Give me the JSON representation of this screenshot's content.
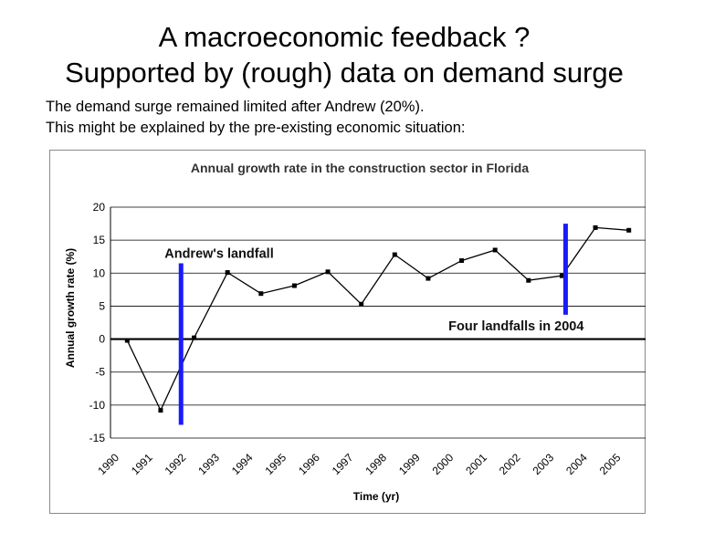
{
  "slide": {
    "title_line1": "A macroeconomic feedback ?",
    "title_line2": "Supported by (rough) data on demand surge",
    "text_line1": "The demand surge remained limited after Andrew (20%).",
    "text_line2": "This might be explained by the pre-existing economic situation:"
  },
  "chart_data": {
    "type": "line",
    "title": "Annual growth rate in the construction sector in Florida",
    "xlabel": "Time (yr)",
    "ylabel": "Annual growth rate (%)",
    "ylim": [
      -15,
      20
    ],
    "yticks": [
      20,
      15,
      10,
      5,
      0,
      -5,
      -10,
      -15
    ],
    "grid": true,
    "categories": [
      "1990",
      "1991",
      "1992",
      "1993",
      "1994",
      "1995",
      "1996",
      "1997",
      "1998",
      "1999",
      "2000",
      "2001",
      "2002",
      "2003",
      "2004",
      "2005"
    ],
    "series": [
      {
        "name": "Annual growth rate",
        "x": [
          1990.5,
          1991.5,
          1992.5,
          1993.5,
          1994.5,
          1995.5,
          1996.5,
          1997.5,
          1998.5,
          1999.5,
          2000.5,
          2001.5,
          2002.5,
          2003.5,
          2004.5,
          2005.5
        ],
        "values": [
          -0.2,
          -10.8,
          0.2,
          10.1,
          6.9,
          8.1,
          10.2,
          5.3,
          12.8,
          9.2,
          11.9,
          13.5,
          8.9,
          9.6,
          16.9,
          16.5
        ]
      }
    ],
    "events": [
      {
        "label": "Andrew's landfall",
        "year": 1992.0,
        "from": -13,
        "to": 11.5,
        "label_position": "above-right"
      },
      {
        "label": "Four landfalls in 2004",
        "year": 2003.5,
        "from": 3.7,
        "to": 17.5,
        "label_position": "below-left"
      }
    ],
    "colors": {
      "line": "#000000",
      "event_bar": "#1a1aff",
      "grid": "#000000"
    }
  }
}
